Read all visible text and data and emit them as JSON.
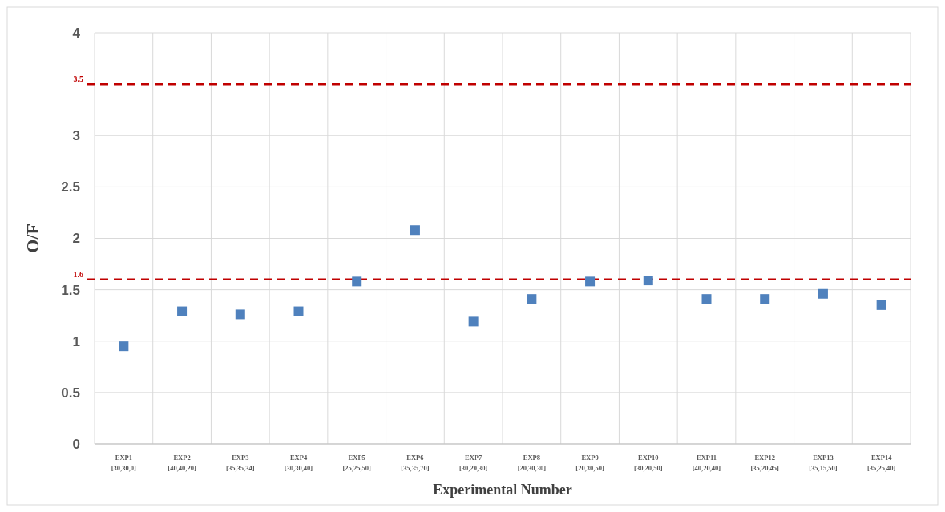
{
  "chart_data": {
    "type": "scatter",
    "xlabel": "Experimental Number",
    "ylabel": "O/F",
    "categories": [
      "EXP1\n[30,30,0]",
      "EXP2\n[40,40,20]",
      "EXP3\n[35,35,34]",
      "EXP4\n[30,30,40]",
      "EXP5\n[25,25,50]",
      "EXP6\n[35,35,70]",
      "EXP7\n[30,20,30]",
      "EXP8\n[20,30,30]",
      "EXP9\n[20,30,50]",
      "EXP10\n[30,20,50]",
      "EXP11\n[40,20,40]",
      "EXP12\n[35,20,45]",
      "EXP13\n[35,15,50]",
      "EXP14\n[35,25,40]"
    ],
    "series": [
      {
        "color": "#4f81bd",
        "values": [
          0.95,
          1.29,
          1.26,
          1.29,
          1.58,
          2.08,
          1.19,
          1.41,
          1.58,
          1.59,
          1.41,
          1.41,
          1.46,
          1.35
        ]
      }
    ],
    "ylim": [
      0,
      4
    ],
    "yticks": [
      0,
      0.5,
      1,
      1.5,
      2,
      2.5,
      3,
      4
    ],
    "ref_lines": [
      {
        "axis": "y",
        "value": 1.6,
        "label": "1.6",
        "color": "#c00000",
        "line_style": "dashed"
      },
      {
        "axis": "y",
        "value": 3.5,
        "label": "3.5",
        "color": "#c00000",
        "line_style": "dashed"
      }
    ],
    "grid": true,
    "marker": "square"
  }
}
